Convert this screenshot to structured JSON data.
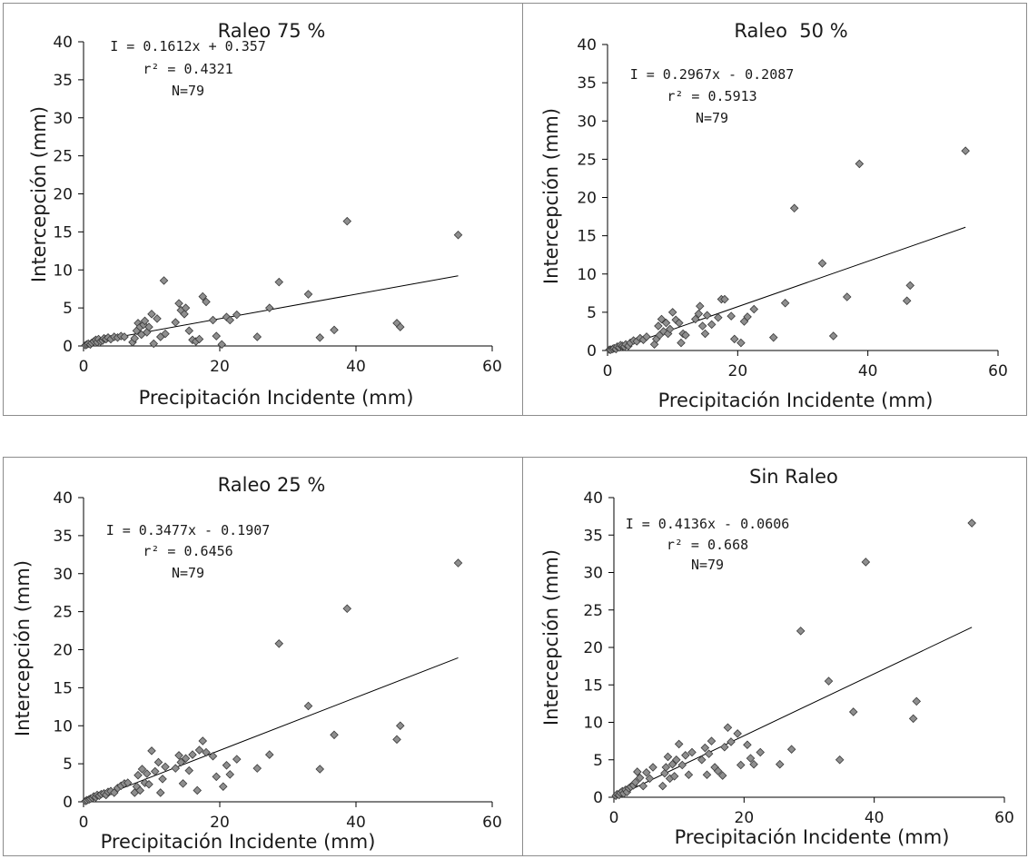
{
  "chart_data": [
    {
      "type": "scatter",
      "title": "Raleo 75 %",
      "xlabel": "Precipitación Incidente (mm)",
      "ylabel": "Intercepción (mm)",
      "xlim": [
        0,
        60
      ],
      "ylim": [
        0,
        40
      ],
      "xticks": [
        "0",
        "20",
        "40",
        "60"
      ],
      "yticks": [
        "0",
        "5",
        "10",
        "15",
        "20",
        "25",
        "30",
        "35",
        "40"
      ],
      "annotation": [
        "I = 0.1612x + 0.357",
        "r² = 0.4321",
        "N=79"
      ],
      "trendline": {
        "slope": 0.1612,
        "intercept": 0.357,
        "x_range": [
          0,
          55
        ]
      },
      "points": [
        [
          0.3,
          0.1
        ],
        [
          0.5,
          0.2
        ],
        [
          0.7,
          0.3
        ],
        [
          1.0,
          0.2
        ],
        [
          1.2,
          0.4
        ],
        [
          1.5,
          0.6
        ],
        [
          1.8,
          0.8
        ],
        [
          2.0,
          0.5
        ],
        [
          2.2,
          0.9
        ],
        [
          2.5,
          0.6
        ],
        [
          2.8,
          0.7
        ],
        [
          3.0,
          1.0
        ],
        [
          3.3,
          0.9
        ],
        [
          3.6,
          1.1
        ],
        [
          4.0,
          0.9
        ],
        [
          4.5,
          1.2
        ],
        [
          5.0,
          1.1
        ],
        [
          5.5,
          1.3
        ],
        [
          6.0,
          1.2
        ],
        [
          7.2,
          0.5
        ],
        [
          7.5,
          1.0
        ],
        [
          7.8,
          2.0
        ],
        [
          8.0,
          3.0
        ],
        [
          8.3,
          2.5
        ],
        [
          8.5,
          1.5
        ],
        [
          8.8,
          2.8
        ],
        [
          9.0,
          3.3
        ],
        [
          9.3,
          1.8
        ],
        [
          9.6,
          2.5
        ],
        [
          10.0,
          4.2
        ],
        [
          10.3,
          0.3
        ],
        [
          10.8,
          3.6
        ],
        [
          11.3,
          1.2
        ],
        [
          11.8,
          8.6
        ],
        [
          12.0,
          1.6
        ],
        [
          13.5,
          3.1
        ],
        [
          14.0,
          5.6
        ],
        [
          14.3,
          4.7
        ],
        [
          14.8,
          4.2
        ],
        [
          15.0,
          5.0
        ],
        [
          15.5,
          2.0
        ],
        [
          16.0,
          0.8
        ],
        [
          16.5,
          0.6
        ],
        [
          17.0,
          0.9
        ],
        [
          17.5,
          6.5
        ],
        [
          18.0,
          5.8
        ],
        [
          19.0,
          3.4
        ],
        [
          19.5,
          1.3
        ],
        [
          20.3,
          0.2
        ],
        [
          21.0,
          3.8
        ],
        [
          21.5,
          3.4
        ],
        [
          22.5,
          4.1
        ],
        [
          25.5,
          1.2
        ],
        [
          27.3,
          5.0
        ],
        [
          28.7,
          8.4
        ],
        [
          33.0,
          6.8
        ],
        [
          34.7,
          1.1
        ],
        [
          36.8,
          2.1
        ],
        [
          38.7,
          16.4
        ],
        [
          46.0,
          3.0
        ],
        [
          46.5,
          2.5
        ],
        [
          55.0,
          14.6
        ]
      ]
    },
    {
      "type": "scatter",
      "title": "Raleo  50 %",
      "xlabel": "Precipitación Incidente (mm)",
      "ylabel": "Intercepción (mm)",
      "xlim": [
        0,
        60
      ],
      "ylim": [
        0,
        40
      ],
      "xticks": [
        "0",
        "20",
        "40",
        "60"
      ],
      "yticks": [
        "0",
        "5",
        "10",
        "15",
        "20",
        "25",
        "30",
        "35",
        "40"
      ],
      "annotation": [
        "I = 0.2967x - 0.2087",
        "r² = 0.5913",
        "N=79"
      ],
      "trendline": {
        "slope": 0.2967,
        "intercept": -0.2087,
        "x_range": [
          0,
          55
        ]
      },
      "points": [
        [
          0.3,
          0.1
        ],
        [
          0.5,
          0.1
        ],
        [
          0.8,
          0.2
        ],
        [
          1.0,
          0.3
        ],
        [
          1.3,
          0.2
        ],
        [
          1.5,
          0.5
        ],
        [
          1.8,
          0.4
        ],
        [
          2.0,
          0.7
        ],
        [
          2.3,
          0.6
        ],
        [
          2.6,
          0.5
        ],
        [
          2.8,
          0.8
        ],
        [
          3.2,
          0.6
        ],
        [
          3.5,
          1.0
        ],
        [
          4.0,
          1.3
        ],
        [
          4.5,
          1.2
        ],
        [
          5.0,
          1.6
        ],
        [
          5.5,
          1.4
        ],
        [
          6.0,
          1.8
        ],
        [
          7.2,
          0.8
        ],
        [
          7.5,
          1.5
        ],
        [
          7.8,
          3.2
        ],
        [
          8.0,
          2.0
        ],
        [
          8.3,
          4.1
        ],
        [
          8.6,
          2.5
        ],
        [
          9.0,
          3.6
        ],
        [
          9.3,
          2.2
        ],
        [
          9.6,
          2.8
        ],
        [
          10.0,
          5.0
        ],
        [
          10.5,
          4.0
        ],
        [
          11.0,
          3.6
        ],
        [
          11.3,
          1.0
        ],
        [
          11.6,
          2.2
        ],
        [
          12.0,
          2.0
        ],
        [
          13.5,
          4.1
        ],
        [
          14.0,
          4.8
        ],
        [
          14.2,
          5.8
        ],
        [
          14.6,
          3.2
        ],
        [
          15.0,
          2.2
        ],
        [
          15.3,
          4.6
        ],
        [
          16.0,
          3.4
        ],
        [
          17.0,
          4.3
        ],
        [
          17.5,
          6.7
        ],
        [
          18.0,
          6.7
        ],
        [
          19.0,
          4.5
        ],
        [
          19.5,
          1.5
        ],
        [
          20.5,
          1.0
        ],
        [
          21.0,
          3.8
        ],
        [
          21.5,
          4.4
        ],
        [
          22.5,
          5.4
        ],
        [
          25.5,
          1.7
        ],
        [
          27.3,
          6.2
        ],
        [
          28.7,
          18.6
        ],
        [
          33.0,
          11.4
        ],
        [
          34.7,
          1.9
        ],
        [
          36.8,
          7.0
        ],
        [
          38.7,
          24.4
        ],
        [
          46.0,
          6.5
        ],
        [
          46.5,
          8.5
        ],
        [
          55.0,
          26.1
        ]
      ]
    },
    {
      "type": "scatter",
      "title": "Raleo 25 %",
      "xlabel": "Precipitación Incidente (mm)",
      "ylabel": "Intercepción (mm)",
      "xlim": [
        0,
        60
      ],
      "ylim": [
        0,
        40
      ],
      "xticks": [
        "0",
        "20",
        "40",
        "60"
      ],
      "yticks": [
        "0",
        "5",
        "10",
        "15",
        "20",
        "25",
        "30",
        "35",
        "40"
      ],
      "annotation": [
        "I = 0.3477x - 0.1907",
        "r² = 0.6456",
        "N=79"
      ],
      "trendline": {
        "slope": 0.3477,
        "intercept": -0.1907,
        "x_range": [
          0,
          55
        ]
      },
      "points": [
        [
          0.3,
          0.1
        ],
        [
          0.5,
          0.2
        ],
        [
          0.8,
          0.3
        ],
        [
          1.0,
          0.4
        ],
        [
          1.3,
          0.5
        ],
        [
          1.5,
          0.7
        ],
        [
          1.8,
          0.6
        ],
        [
          2.0,
          0.9
        ],
        [
          2.3,
          0.8
        ],
        [
          2.6,
          1.0
        ],
        [
          3.0,
          1.1
        ],
        [
          3.3,
          0.9
        ],
        [
          3.6,
          1.3
        ],
        [
          4.0,
          1.4
        ],
        [
          4.5,
          1.2
        ],
        [
          5.0,
          1.8
        ],
        [
          5.5,
          2.1
        ],
        [
          6.0,
          2.4
        ],
        [
          6.5,
          2.5
        ],
        [
          7.5,
          1.2
        ],
        [
          7.8,
          2.0
        ],
        [
          8.0,
          3.5
        ],
        [
          8.3,
          1.5
        ],
        [
          8.6,
          4.3
        ],
        [
          9.0,
          2.5
        ],
        [
          9.3,
          3.7
        ],
        [
          9.6,
          2.3
        ],
        [
          10.0,
          6.7
        ],
        [
          10.5,
          4.0
        ],
        [
          11.0,
          5.2
        ],
        [
          11.3,
          1.2
        ],
        [
          11.6,
          3.0
        ],
        [
          12.0,
          4.6
        ],
        [
          13.5,
          4.4
        ],
        [
          14.0,
          6.1
        ],
        [
          14.3,
          5.2
        ],
        [
          14.6,
          2.4
        ],
        [
          15.0,
          5.7
        ],
        [
          15.5,
          4.1
        ],
        [
          16.0,
          6.2
        ],
        [
          16.7,
          1.5
        ],
        [
          17.0,
          6.8
        ],
        [
          17.5,
          8.0
        ],
        [
          18.0,
          6.5
        ],
        [
          19.0,
          6.0
        ],
        [
          19.5,
          3.3
        ],
        [
          20.5,
          2.0
        ],
        [
          21.0,
          4.8
        ],
        [
          21.5,
          3.6
        ],
        [
          22.5,
          5.6
        ],
        [
          25.5,
          4.4
        ],
        [
          27.3,
          6.2
        ],
        [
          28.7,
          20.8
        ],
        [
          33.0,
          12.6
        ],
        [
          34.7,
          4.3
        ],
        [
          36.8,
          8.8
        ],
        [
          38.7,
          25.4
        ],
        [
          46.0,
          8.2
        ],
        [
          46.5,
          10.0
        ],
        [
          55.0,
          31.4
        ]
      ]
    },
    {
      "type": "scatter",
      "title": "Sin Raleo",
      "xlabel": "Precipitación Incidente (mm)",
      "ylabel": "Intercepción (mm)",
      "xlim": [
        0,
        60
      ],
      "ylim": [
        0,
        40
      ],
      "xticks": [
        "0",
        "20",
        "40",
        "60"
      ],
      "yticks": [
        "0",
        "5",
        "10",
        "15",
        "20",
        "25",
        "30",
        "35",
        "40"
      ],
      "annotation": [
        "I = 0.4136x - 0.0606",
        "r² = 0.668",
        "N=79"
      ],
      "trendline": {
        "slope": 0.4136,
        "intercept": -0.0606,
        "x_range": [
          0,
          55
        ]
      },
      "points": [
        [
          0.3,
          0.2
        ],
        [
          0.5,
          0.4
        ],
        [
          0.8,
          0.3
        ],
        [
          1.0,
          0.6
        ],
        [
          1.3,
          0.8
        ],
        [
          1.5,
          0.5
        ],
        [
          1.8,
          1.0
        ],
        [
          2.0,
          0.7
        ],
        [
          2.3,
          1.2
        ],
        [
          2.6,
          1.4
        ],
        [
          3.0,
          1.6
        ],
        [
          3.3,
          2.0
        ],
        [
          3.6,
          3.4
        ],
        [
          4.0,
          2.6
        ],
        [
          4.5,
          1.5
        ],
        [
          5.0,
          3.3
        ],
        [
          5.5,
          2.5
        ],
        [
          6.0,
          4.0
        ],
        [
          7.5,
          1.5
        ],
        [
          7.8,
          3.2
        ],
        [
          8.0,
          4.0
        ],
        [
          8.3,
          5.4
        ],
        [
          8.6,
          2.5
        ],
        [
          9.0,
          4.4
        ],
        [
          9.3,
          2.8
        ],
        [
          9.6,
          5.0
        ],
        [
          10.0,
          7.1
        ],
        [
          10.5,
          4.3
        ],
        [
          11.0,
          5.6
        ],
        [
          11.5,
          3.0
        ],
        [
          12.0,
          6.0
        ],
        [
          13.5,
          5.0
        ],
        [
          14.0,
          6.6
        ],
        [
          14.3,
          3.0
        ],
        [
          14.6,
          5.8
        ],
        [
          15.0,
          7.5
        ],
        [
          15.5,
          4.0
        ],
        [
          16.0,
          3.5
        ],
        [
          16.7,
          2.9
        ],
        [
          17.0,
          6.7
        ],
        [
          17.5,
          9.3
        ],
        [
          18.0,
          7.4
        ],
        [
          19.0,
          8.5
        ],
        [
          19.5,
          4.3
        ],
        [
          20.5,
          7.0
        ],
        [
          21.0,
          5.2
        ],
        [
          21.5,
          4.4
        ],
        [
          22.5,
          6.0
        ],
        [
          25.5,
          4.4
        ],
        [
          27.3,
          6.4
        ],
        [
          28.7,
          22.2
        ],
        [
          33.0,
          15.5
        ],
        [
          34.7,
          5.0
        ],
        [
          36.8,
          11.4
        ],
        [
          38.7,
          31.4
        ],
        [
          46.0,
          10.5
        ],
        [
          46.5,
          12.8
        ],
        [
          55.0,
          36.6
        ]
      ]
    }
  ]
}
